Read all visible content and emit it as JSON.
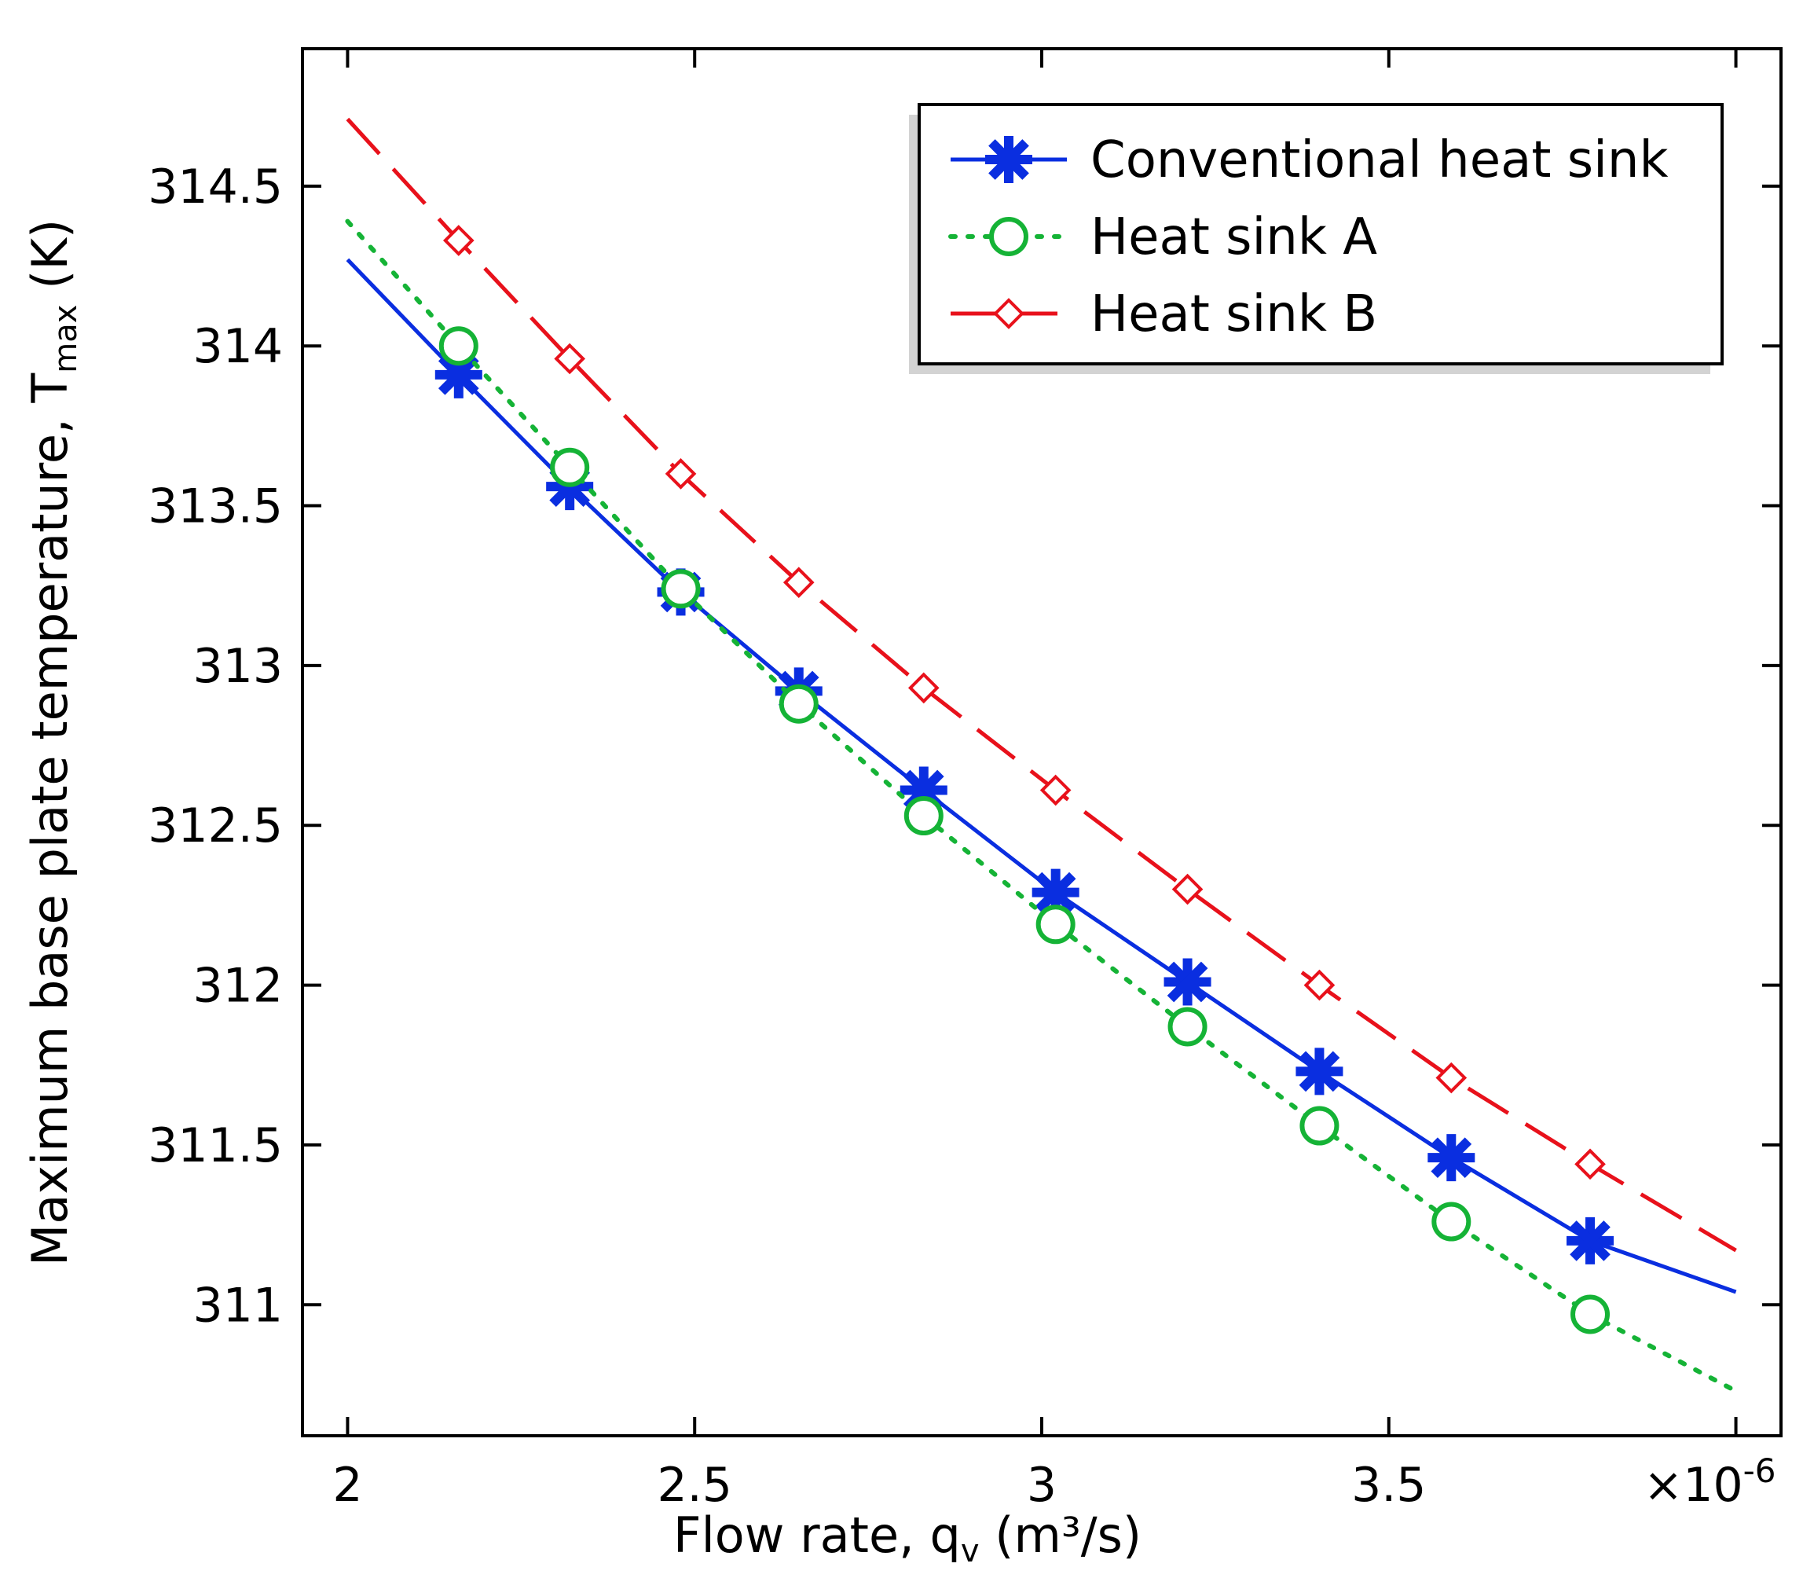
{
  "chart_data": {
    "type": "line",
    "xlabel": "Flow rate, q",
    "xlabel_sub": "v",
    "xlabel_unit": " (m³/s)",
    "ylabel": "Maximum base plate temperature, T",
    "ylabel_sub": "max",
    "ylabel_unit": " (K)",
    "x_multiplier": "×10",
    "x_multiplier_exp": "-6",
    "xlim": [
      1.935,
      4.065
    ],
    "ylim": [
      310.59,
      314.93
    ],
    "xticks": [
      2,
      2.5,
      3,
      3.5,
      4
    ],
    "xtick_labels": [
      "2",
      "2.5",
      "3",
      "3.5",
      ""
    ],
    "yticks": [
      311,
      311.5,
      312,
      312.5,
      313,
      313.5,
      314,
      314.5
    ],
    "ytick_labels": [
      "311",
      "311.5",
      "312",
      "312.5",
      "313",
      "313.5",
      "314",
      "314.5"
    ],
    "legend_position": "top-right",
    "series": [
      {
        "name": "Conventional heat sink",
        "color": "#0a2ee0",
        "line": "solid",
        "marker": "asterisk",
        "x": [
          2.0,
          2.16,
          2.32,
          2.48,
          2.65,
          2.83,
          3.02,
          3.21,
          3.4,
          3.59,
          3.79,
          4.0
        ],
        "y": [
          314.27,
          313.91,
          313.56,
          313.23,
          312.92,
          312.61,
          312.29,
          312.01,
          311.73,
          311.46,
          311.2,
          311.04
        ],
        "marker_x": [
          2.16,
          2.32,
          2.48,
          2.65,
          2.83,
          3.02,
          3.21,
          3.4,
          3.59,
          3.79
        ],
        "marker_y": [
          313.91,
          313.56,
          313.23,
          312.92,
          312.61,
          312.29,
          312.01,
          311.73,
          311.46,
          311.2
        ]
      },
      {
        "name": "Heat sink A",
        "color": "#15b336",
        "line": "dotted",
        "marker": "circle",
        "x": [
          2.0,
          2.16,
          2.32,
          2.48,
          2.65,
          2.83,
          3.02,
          3.21,
          3.4,
          3.59,
          3.79,
          4.0
        ],
        "y": [
          314.39,
          314.0,
          313.62,
          313.24,
          312.88,
          312.53,
          312.19,
          311.87,
          311.56,
          311.26,
          310.97,
          310.73
        ],
        "marker_x": [
          2.16,
          2.32,
          2.48,
          2.65,
          2.83,
          3.02,
          3.21,
          3.4,
          3.59,
          3.79
        ],
        "marker_y": [
          314.0,
          313.62,
          313.24,
          312.88,
          312.53,
          312.19,
          311.87,
          311.56,
          311.26,
          310.97
        ]
      },
      {
        "name": "Heat sink B",
        "color": "#e8111b",
        "line": "dashed",
        "marker": "diamond",
        "x": [
          2.0,
          2.16,
          2.32,
          2.48,
          2.65,
          2.83,
          3.02,
          3.21,
          3.4,
          3.59,
          3.79,
          4.0
        ],
        "y": [
          314.71,
          314.33,
          313.96,
          313.6,
          313.26,
          312.93,
          312.61,
          312.3,
          312.0,
          311.71,
          311.44,
          311.17
        ],
        "marker_x": [
          2.16,
          2.32,
          2.48,
          2.65,
          2.83,
          3.02,
          3.21,
          3.4,
          3.59,
          3.79
        ],
        "marker_y": [
          314.33,
          313.96,
          313.6,
          313.26,
          312.93,
          312.61,
          312.3,
          312.0,
          311.71,
          311.44
        ]
      }
    ]
  }
}
